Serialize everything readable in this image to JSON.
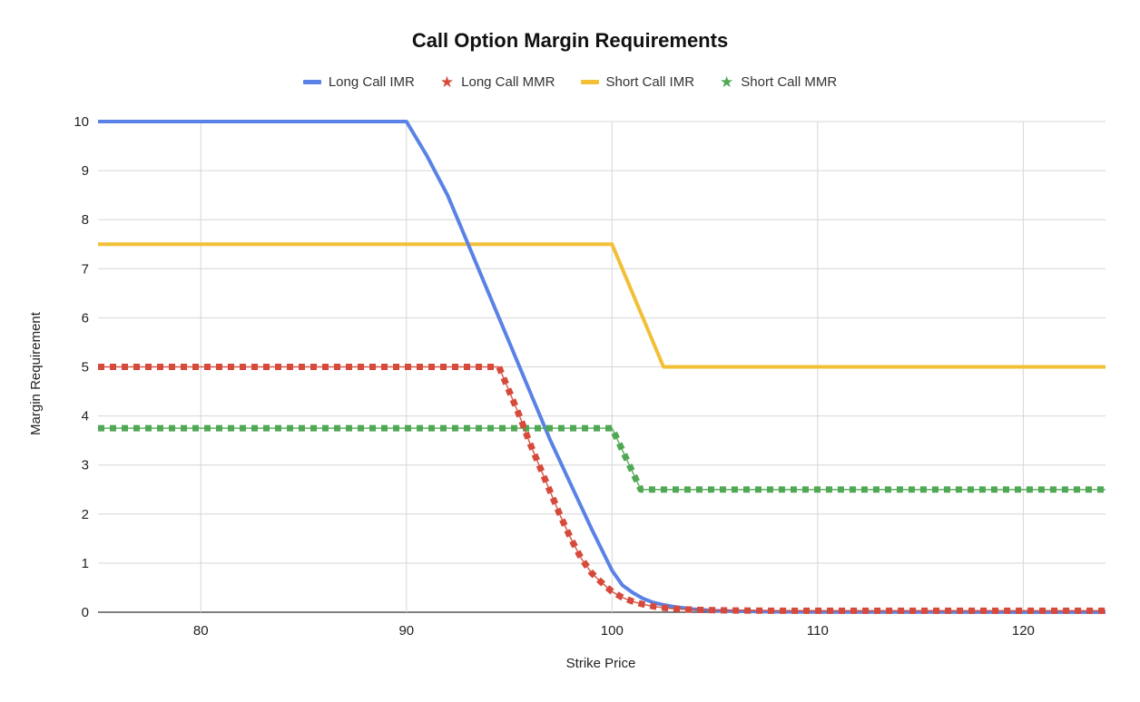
{
  "chart_data": {
    "type": "line",
    "title": "Call Option Margin Requirements",
    "xlabel": "Strike Price",
    "ylabel": "Margin Requirement",
    "xlim": [
      75,
      124
    ],
    "ylim": [
      0,
      10
    ],
    "x_ticks": [
      80,
      90,
      100,
      110,
      120
    ],
    "y_ticks": [
      0,
      1,
      2,
      3,
      4,
      5,
      6,
      7,
      8,
      9,
      10
    ],
    "grid": true,
    "legend_position": "top",
    "series": [
      {
        "name": "Long Call IMR",
        "color": "#5a82e6",
        "style": "solid",
        "x": [
          75,
          90,
          91,
          92,
          93,
          94,
          95,
          96,
          97,
          98,
          99,
          100,
          100.5,
          101,
          101.5,
          102,
          102.5,
          103,
          104,
          105,
          106,
          108,
          110,
          115,
          120,
          124
        ],
        "y": [
          10,
          10,
          9.3,
          8.5,
          7.5,
          6.5,
          5.5,
          4.5,
          3.5,
          2.6,
          1.7,
          0.85,
          0.55,
          0.4,
          0.28,
          0.2,
          0.15,
          0.11,
          0.06,
          0.03,
          0.02,
          0.01,
          0.005,
          0.003,
          0.002,
          0.002
        ]
      },
      {
        "name": "Long Call MMR",
        "color": "#d64a3b",
        "style": "dotted",
        "x": [
          75,
          94.5,
          95,
          95.5,
          96,
          96.5,
          97,
          97.5,
          98,
          98.5,
          99,
          99.5,
          100,
          100.5,
          101,
          101.5,
          102,
          102.5,
          103,
          104,
          105,
          106,
          108,
          110,
          115,
          120,
          124
        ],
        "y": [
          5,
          5,
          4.5,
          4.0,
          3.45,
          2.95,
          2.45,
          1.95,
          1.5,
          1.1,
          0.8,
          0.6,
          0.42,
          0.3,
          0.22,
          0.16,
          0.12,
          0.09,
          0.07,
          0.05,
          0.04,
          0.035,
          0.03,
          0.03,
          0.03,
          0.03,
          0.03
        ]
      },
      {
        "name": "Short Call IMR",
        "color": "#f2c037",
        "style": "solid",
        "x": [
          75,
          100,
          102.5,
          124
        ],
        "y": [
          7.5,
          7.5,
          5,
          5
        ]
      },
      {
        "name": "Short Call MMR",
        "color": "#4fa853",
        "style": "dotted",
        "x": [
          75,
          100,
          101.4,
          124
        ],
        "y": [
          3.75,
          3.75,
          2.5,
          2.5
        ]
      }
    ]
  }
}
